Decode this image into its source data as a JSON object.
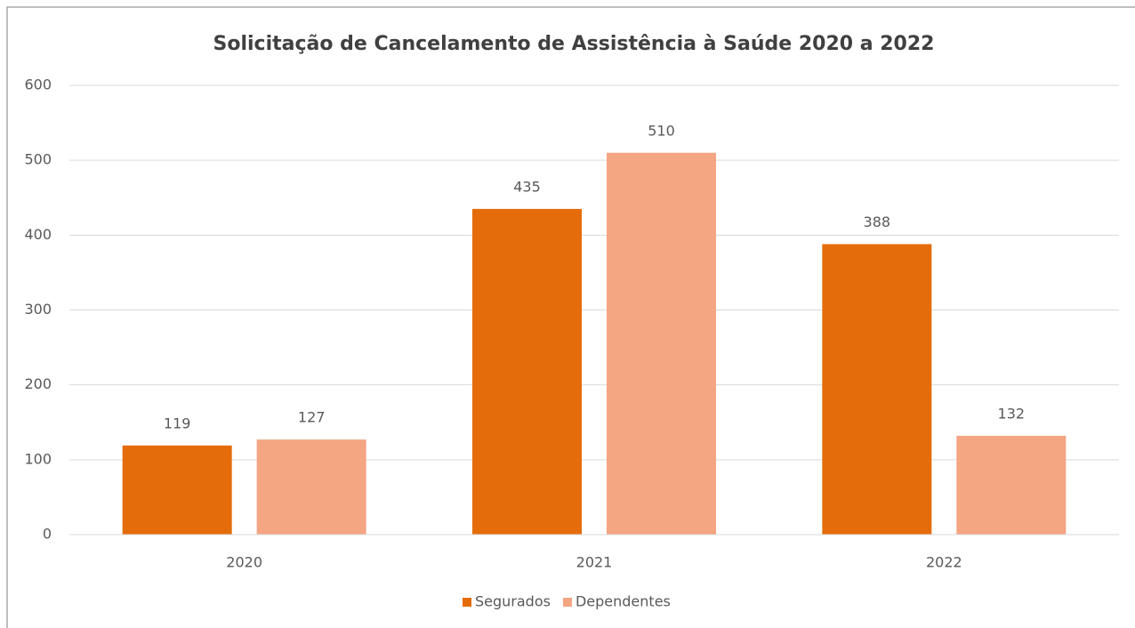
{
  "chart_data": {
    "type": "bar",
    "title": "Solicitação de Cancelamento de Assistência à Saúde 2020 a 2022",
    "categories": [
      "2020",
      "2021",
      "2022"
    ],
    "series": [
      {
        "name": "Segurados",
        "color": "#e46c0a",
        "values": [
          119,
          435,
          388
        ]
      },
      {
        "name": "Dependentes",
        "color": "#f4a582",
        "values": [
          127,
          510,
          132
        ]
      }
    ],
    "ylim": [
      0,
      600
    ],
    "yticks": [
      0,
      100,
      200,
      300,
      400,
      500,
      600
    ],
    "grid": true,
    "legend": "bottom"
  }
}
